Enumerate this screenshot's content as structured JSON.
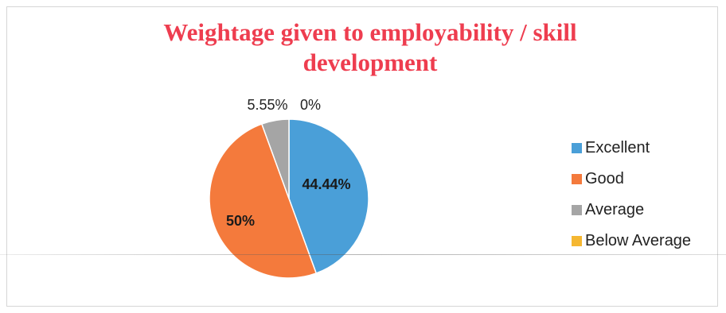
{
  "chart_data": {
    "type": "pie",
    "title_lines": [
      "Weightage given to employability / skill",
      "development"
    ],
    "slices": [
      {
        "label": "Excellent",
        "value": 44.44,
        "display": "44.44%",
        "color": "#4a9fd8"
      },
      {
        "label": "Good",
        "value": 50,
        "display": "50%",
        "color": "#f47a3c"
      },
      {
        "label": "Average",
        "value": 5.55,
        "display": "5.55%",
        "color": "#a5a5a5"
      },
      {
        "label": "Below Average",
        "value": 0,
        "display": "0%",
        "color": "#f5b731"
      }
    ],
    "legend_position": "right"
  }
}
